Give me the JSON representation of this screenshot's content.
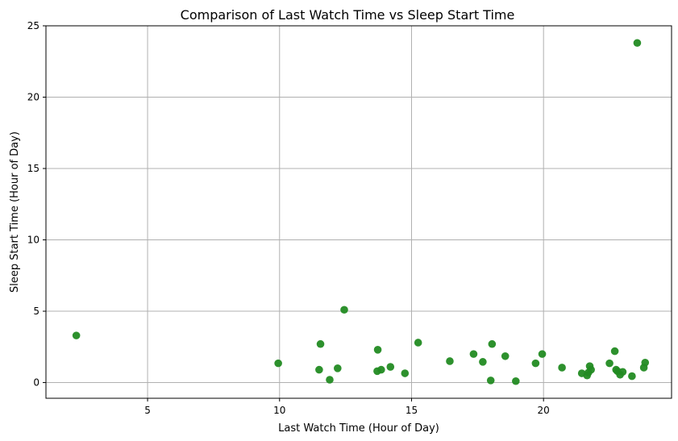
{
  "chart_data": {
    "type": "scatter",
    "title": "Comparison of Last Watch Time vs Sleep Start Time",
    "xlabel": "Last Watch Time (Hour of Day)",
    "ylabel": "Sleep Start Time (Hour of Day)",
    "xlim": [
      1.15,
      24.85
    ],
    "ylim": [
      -1.1,
      25
    ],
    "xticks": [
      5,
      10,
      15,
      20
    ],
    "yticks": [
      0,
      5,
      10,
      15,
      20,
      25
    ],
    "grid": true,
    "marker_color": "#228b22",
    "points": [
      {
        "x": 2.3,
        "y": 3.3
      },
      {
        "x": 9.95,
        "y": 1.35
      },
      {
        "x": 11.5,
        "y": 0.9
      },
      {
        "x": 11.55,
        "y": 2.7
      },
      {
        "x": 11.9,
        "y": 0.2
      },
      {
        "x": 12.2,
        "y": 1.0
      },
      {
        "x": 12.45,
        "y": 5.1
      },
      {
        "x": 13.7,
        "y": 0.8
      },
      {
        "x": 13.72,
        "y": 2.3
      },
      {
        "x": 13.85,
        "y": 0.9
      },
      {
        "x": 14.2,
        "y": 1.1
      },
      {
        "x": 14.75,
        "y": 0.65
      },
      {
        "x": 15.25,
        "y": 2.8
      },
      {
        "x": 16.45,
        "y": 1.5
      },
      {
        "x": 17.35,
        "y": 2.0
      },
      {
        "x": 17.7,
        "y": 1.45
      },
      {
        "x": 18.0,
        "y": 0.15
      },
      {
        "x": 18.05,
        "y": 2.7
      },
      {
        "x": 18.55,
        "y": 1.85
      },
      {
        "x": 18.95,
        "y": 0.1
      },
      {
        "x": 19.7,
        "y": 1.35
      },
      {
        "x": 19.95,
        "y": 2.0
      },
      {
        "x": 20.7,
        "y": 1.05
      },
      {
        "x": 21.45,
        "y": 0.65
      },
      {
        "x": 21.65,
        "y": 0.5
      },
      {
        "x": 21.7,
        "y": 0.7
      },
      {
        "x": 21.75,
        "y": 1.15
      },
      {
        "x": 21.8,
        "y": 0.9
      },
      {
        "x": 22.5,
        "y": 1.35
      },
      {
        "x": 22.7,
        "y": 2.2
      },
      {
        "x": 22.75,
        "y": 0.9
      },
      {
        "x": 22.8,
        "y": 0.8
      },
      {
        "x": 22.9,
        "y": 0.55
      },
      {
        "x": 23.0,
        "y": 0.75
      },
      {
        "x": 23.35,
        "y": 0.45
      },
      {
        "x": 23.55,
        "y": 23.8
      },
      {
        "x": 23.8,
        "y": 1.05
      },
      {
        "x": 23.85,
        "y": 1.4
      }
    ]
  }
}
